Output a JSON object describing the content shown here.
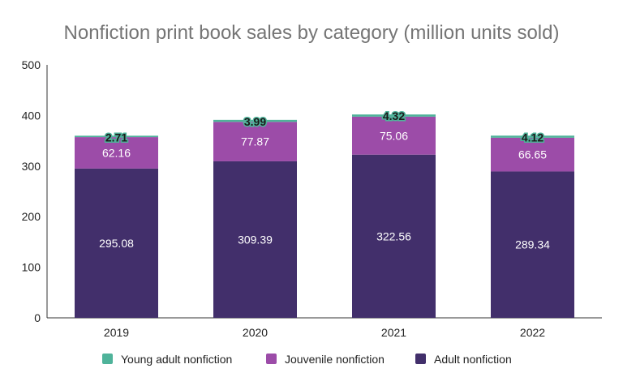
{
  "chart_data": {
    "type": "bar",
    "stacked": true,
    "title": "Nonfiction print book sales by category (million units sold)",
    "xlabel": "",
    "ylabel": "",
    "categories": [
      "2019",
      "2020",
      "2021",
      "2022"
    ],
    "ylim": [
      0,
      500
    ],
    "yticks": [
      0,
      100,
      200,
      300,
      400,
      500
    ],
    "grid": false,
    "legend": "bottom",
    "series": [
      {
        "name": "Adult nonfiction",
        "values": [
          295.08,
          309.39,
          322.56,
          289.34
        ],
        "color": "#422f6b",
        "label_color": "#ffffff"
      },
      {
        "name": "Jouvenile nonfiction",
        "values": [
          62.16,
          77.87,
          75.06,
          66.65
        ],
        "color": "#9c4ca8",
        "label_color": "#ffffff"
      },
      {
        "name": "Young adult nonfiction",
        "values": [
          2.71,
          3.99,
          4.32,
          4.12
        ],
        "color": "#4fb39a",
        "label_color": "#1a1a1a"
      }
    ],
    "legend_order": [
      "Young adult nonfiction",
      "Jouvenile nonfiction",
      "Adult nonfiction"
    ]
  }
}
